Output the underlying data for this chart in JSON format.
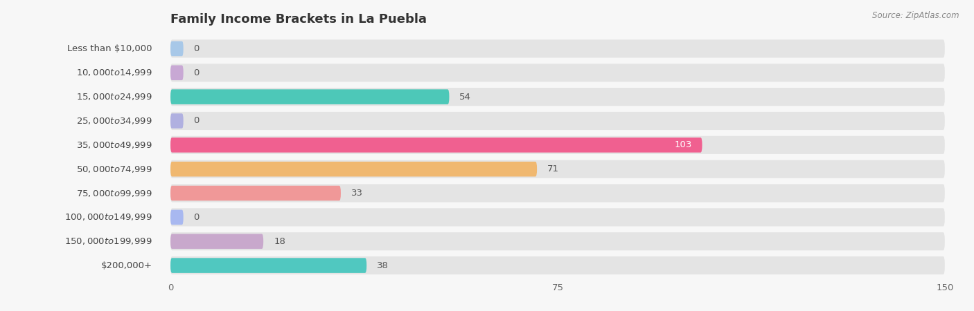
{
  "title": "Family Income Brackets in La Puebla",
  "source": "Source: ZipAtlas.com",
  "categories": [
    "Less than $10,000",
    "$10,000 to $14,999",
    "$15,000 to $24,999",
    "$25,000 to $34,999",
    "$35,000 to $49,999",
    "$50,000 to $74,999",
    "$75,000 to $99,999",
    "$100,000 to $149,999",
    "$150,000 to $199,999",
    "$200,000+"
  ],
  "values": [
    0,
    0,
    54,
    0,
    103,
    71,
    33,
    0,
    18,
    38
  ],
  "bar_colors": [
    "#a8c8e8",
    "#c8a8d4",
    "#4dc8b8",
    "#b0b0e0",
    "#f06090",
    "#f0b870",
    "#f09898",
    "#a8b8f0",
    "#c8a8cc",
    "#50c8c0"
  ],
  "xlim": [
    0,
    150
  ],
  "xticks": [
    0,
    75,
    150
  ],
  "background_color": "#f7f7f7",
  "bar_background_color": "#e4e4e4",
  "title_fontsize": 13,
  "label_fontsize": 9.5,
  "value_fontsize": 9.5
}
